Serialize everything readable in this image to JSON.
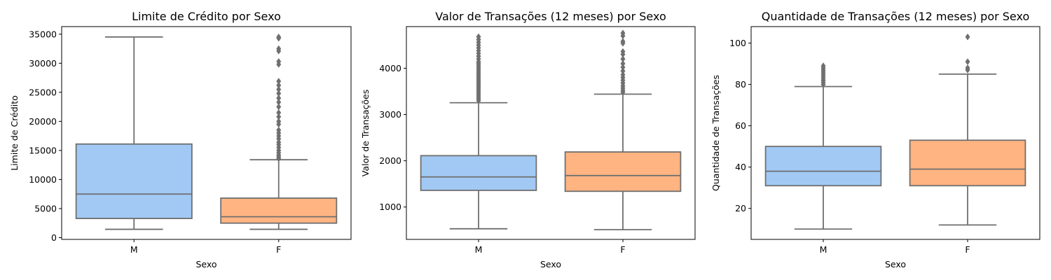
{
  "chart_data": [
    {
      "type": "box",
      "title": "Limite de Crédito por Sexo",
      "xlabel": "Sexo",
      "ylabel": "Limite de Crédito",
      "ylim": [
        -300,
        36300
      ],
      "yticks": [
        0,
        5000,
        10000,
        15000,
        20000,
        25000,
        30000,
        35000
      ],
      "categories": [
        "M",
        "F"
      ],
      "boxes": [
        {
          "category": "M",
          "color": "#a1c9f4",
          "whisker_low": 1438,
          "q1": 3300,
          "median": 7500,
          "q3": 16100,
          "whisker_high": 34516,
          "outliers": []
        },
        {
          "category": "F",
          "color": "#ffb482",
          "whisker_low": 1438,
          "q1": 2500,
          "median": 3600,
          "q3": 6800,
          "whisker_high": 13400,
          "outliers": [
            13600,
            13900,
            14200,
            14600,
            15000,
            15500,
            16000,
            16400,
            17000,
            17500,
            18000,
            18500,
            19500,
            20000,
            20800,
            21500,
            22500,
            23300,
            24000,
            24800,
            25500,
            26200,
            26900,
            29800,
            30300,
            32100,
            32500,
            34300,
            34516
          ]
        }
      ]
    },
    {
      "type": "box",
      "title": "Valor de Transações (12 meses) por Sexo",
      "xlabel": "Sexo",
      "ylabel": "Valor de Transações",
      "ylim": [
        300,
        4900
      ],
      "yticks": [
        1000,
        2000,
        3000,
        4000
      ],
      "categories": [
        "M",
        "F"
      ],
      "boxes": [
        {
          "category": "M",
          "color": "#a1c9f4",
          "whisker_low": 530,
          "q1": 1360,
          "median": 1650,
          "q3": 2110,
          "whisker_high": 3255,
          "outliers": [
            3300,
            3340,
            3380,
            3420,
            3460,
            3500,
            3540,
            3580,
            3620,
            3660,
            3700,
            3740,
            3780,
            3820,
            3860,
            3900,
            3940,
            3980,
            4020,
            4060,
            4100,
            4140,
            4200,
            4260,
            4320,
            4380,
            4440,
            4500,
            4560,
            4620,
            4680
          ]
        },
        {
          "category": "F",
          "color": "#ffb482",
          "whisker_low": 510,
          "q1": 1340,
          "median": 1680,
          "q3": 2190,
          "whisker_high": 3440,
          "outliers": [
            3480,
            3520,
            3570,
            3620,
            3680,
            3740,
            3800,
            3860,
            3940,
            4020,
            4100,
            4200,
            4300,
            4360,
            4540,
            4580,
            4700,
            4760
          ]
        }
      ]
    },
    {
      "type": "box",
      "title": "Quantidade de Transações (12 meses) por Sexo",
      "xlabel": "Sexo",
      "ylabel": "Quantidade de Transações",
      "ylim": [
        5,
        108
      ],
      "yticks": [
        20,
        40,
        60,
        80,
        100
      ],
      "categories": [
        "M",
        "F"
      ],
      "boxes": [
        {
          "category": "M",
          "color": "#a1c9f4",
          "whisker_low": 10,
          "q1": 31,
          "median": 38,
          "q3": 50,
          "whisker_high": 79,
          "outliers": [
            80,
            81,
            82,
            83,
            84,
            85,
            86,
            87,
            88,
            89
          ]
        },
        {
          "category": "F",
          "color": "#ffb482",
          "whisker_low": 12,
          "q1": 31,
          "median": 39,
          "q3": 53,
          "whisker_high": 85,
          "outliers": [
            87,
            88,
            91,
            103
          ]
        }
      ]
    }
  ]
}
